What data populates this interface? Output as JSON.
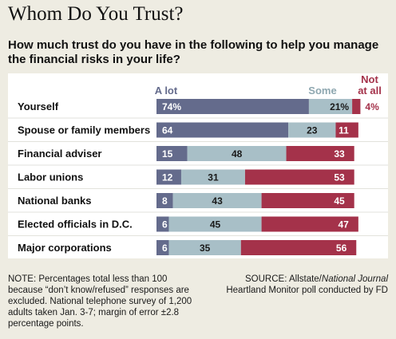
{
  "title": "Whom Do You Trust?",
  "subtitle": "How much trust do you have in the following to help you manage the financial risks in your life?",
  "chart_data": {
    "type": "bar",
    "stacked": true,
    "orientation": "horizontal",
    "categories": [
      "Yourself",
      "Spouse or family members",
      "Financial adviser",
      "Labor unions",
      "National banks",
      "Elected officials in D.C.",
      "Major corporations"
    ],
    "series": [
      {
        "name": "A lot",
        "values": [
          74,
          64,
          15,
          12,
          8,
          6,
          6
        ],
        "color": "#646b8c"
      },
      {
        "name": "Some",
        "values": [
          21,
          23,
          48,
          31,
          43,
          45,
          35
        ],
        "color": "#a8bfc7"
      },
      {
        "name": "Not at all",
        "values": [
          4,
          11,
          33,
          53,
          45,
          47,
          56
        ],
        "color": "#a4324a"
      }
    ],
    "first_row_percent_suffix": true,
    "xlim": [
      0,
      100
    ],
    "legend_placement": "top",
    "grid": false
  },
  "legend": {
    "a_lot": "A lot",
    "some": "Some",
    "not_at_all_line1": "Not",
    "not_at_all_line2": "at all"
  },
  "colors": {
    "a_lot": "#646b8c",
    "some": "#a8bfc7",
    "not_at_all": "#a4324a",
    "not_at_all_text": "#a4324a",
    "row_separator": "#e2e2dc"
  },
  "notes": "NOTE: Percentages total less than 100 because “don’t know/refused” responses are excluded. National telephone survey of 1,200 adults taken Jan. 3-7; margin of error ±2.8 percentage points.",
  "source": {
    "prefix": "SOURCE: Allstate/",
    "italic": "National Journal",
    "suffix": "Heartland Monitor poll conducted by FD"
  }
}
